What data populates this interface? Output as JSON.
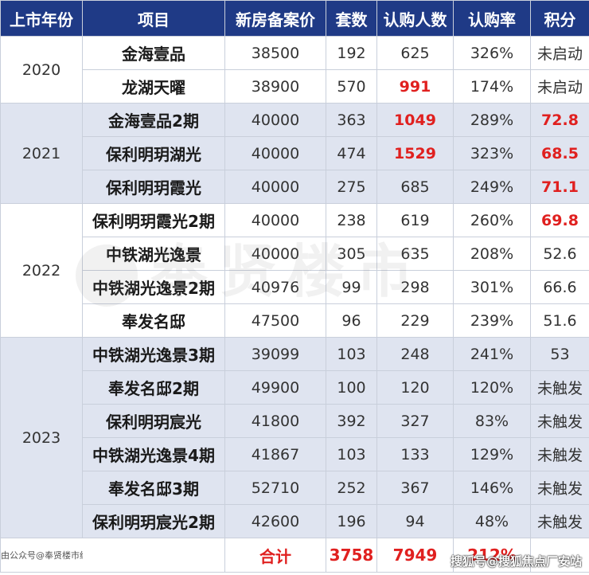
{
  "headers": [
    "上市年份",
    "项目",
    "新房备案价",
    "套数",
    "认购人数",
    "认购率",
    "积分"
  ],
  "groups": [
    {
      "year": "2020",
      "shaded": false,
      "rows": [
        {
          "name": "金海壹品",
          "price": "38500",
          "units": "192",
          "subs": "625",
          "rate": "326%",
          "score": "未启动",
          "subs_red": false,
          "score_red": false
        },
        {
          "name": "龙湖天曜",
          "price": "38900",
          "units": "570",
          "subs": "991",
          "rate": "174%",
          "score": "未启动",
          "subs_red": true,
          "score_red": false
        }
      ]
    },
    {
      "year": "2021",
      "shaded": true,
      "rows": [
        {
          "name": "金海壹品2期",
          "price": "40000",
          "units": "363",
          "subs": "1049",
          "rate": "289%",
          "score": "72.8",
          "subs_red": true,
          "score_red": true
        },
        {
          "name": "保利明玥湖光",
          "price": "40000",
          "units": "474",
          "subs": "1529",
          "rate": "323%",
          "score": "68.5",
          "subs_red": true,
          "score_red": true
        },
        {
          "name": "保利明玥霞光",
          "price": "40000",
          "units": "275",
          "subs": "685",
          "rate": "249%",
          "score": "71.1",
          "subs_red": false,
          "score_red": true
        }
      ]
    },
    {
      "year": "2022",
      "shaded": false,
      "rows": [
        {
          "name": "保利明玥霞光2期",
          "price": "40000",
          "units": "238",
          "subs": "619",
          "rate": "260%",
          "score": "69.8",
          "subs_red": false,
          "score_red": true
        },
        {
          "name": "中铁湖光逸景",
          "price": "40000",
          "units": "305",
          "subs": "635",
          "rate": "208%",
          "score": "52.6",
          "subs_red": false,
          "score_red": false
        },
        {
          "name": "中铁湖光逸景2期",
          "price": "40976",
          "units": "99",
          "subs": "298",
          "rate": "301%",
          "score": "66.6",
          "subs_red": false,
          "score_red": false
        },
        {
          "name": "奉发名邸",
          "price": "47500",
          "units": "96",
          "subs": "229",
          "rate": "239%",
          "score": "51.6",
          "subs_red": false,
          "score_red": false
        }
      ]
    },
    {
      "year": "2023",
      "shaded": true,
      "rows": [
        {
          "name": "中铁湖光逸景3期",
          "price": "39099",
          "units": "103",
          "subs": "248",
          "rate": "241%",
          "score": "53",
          "subs_red": false,
          "score_red": false
        },
        {
          "name": "奉发名邸2期",
          "price": "49900",
          "units": "100",
          "subs": "120",
          "rate": "120%",
          "score": "未触发",
          "subs_red": false,
          "score_red": false
        },
        {
          "name": "保利明玥宸光",
          "price": "41800",
          "units": "392",
          "subs": "327",
          "rate": "83%",
          "score": "未触发",
          "subs_red": false,
          "score_red": false
        },
        {
          "name": "中铁湖光逸景4期",
          "price": "41867",
          "units": "103",
          "subs": "133",
          "rate": "129%",
          "score": "未触发",
          "subs_red": false,
          "score_red": false
        },
        {
          "name": "奉发名邸3期",
          "price": "52710",
          "units": "252",
          "subs": "367",
          "rate": "146%",
          "score": "未触发",
          "subs_red": false,
          "score_red": false
        },
        {
          "name": "保利明玥宸光2期",
          "price": "42600",
          "units": "196",
          "subs": "94",
          "rate": "48%",
          "score": "未触发",
          "subs_red": false,
          "score_red": false
        }
      ]
    }
  ],
  "footer": {
    "source": "由公众号@奉贤楼市统计",
    "total_label": "合计",
    "total_units": "3758",
    "total_subs": "7949",
    "total_rate": "212%"
  },
  "watermark": "奉贤楼市",
  "corner_watermark": "搜狐号@搜狐焦点厂安站",
  "colors": {
    "header_bg": "#1f3a86",
    "shade_bg": "#dfe4f0",
    "highlight_red": "#e0201f"
  }
}
